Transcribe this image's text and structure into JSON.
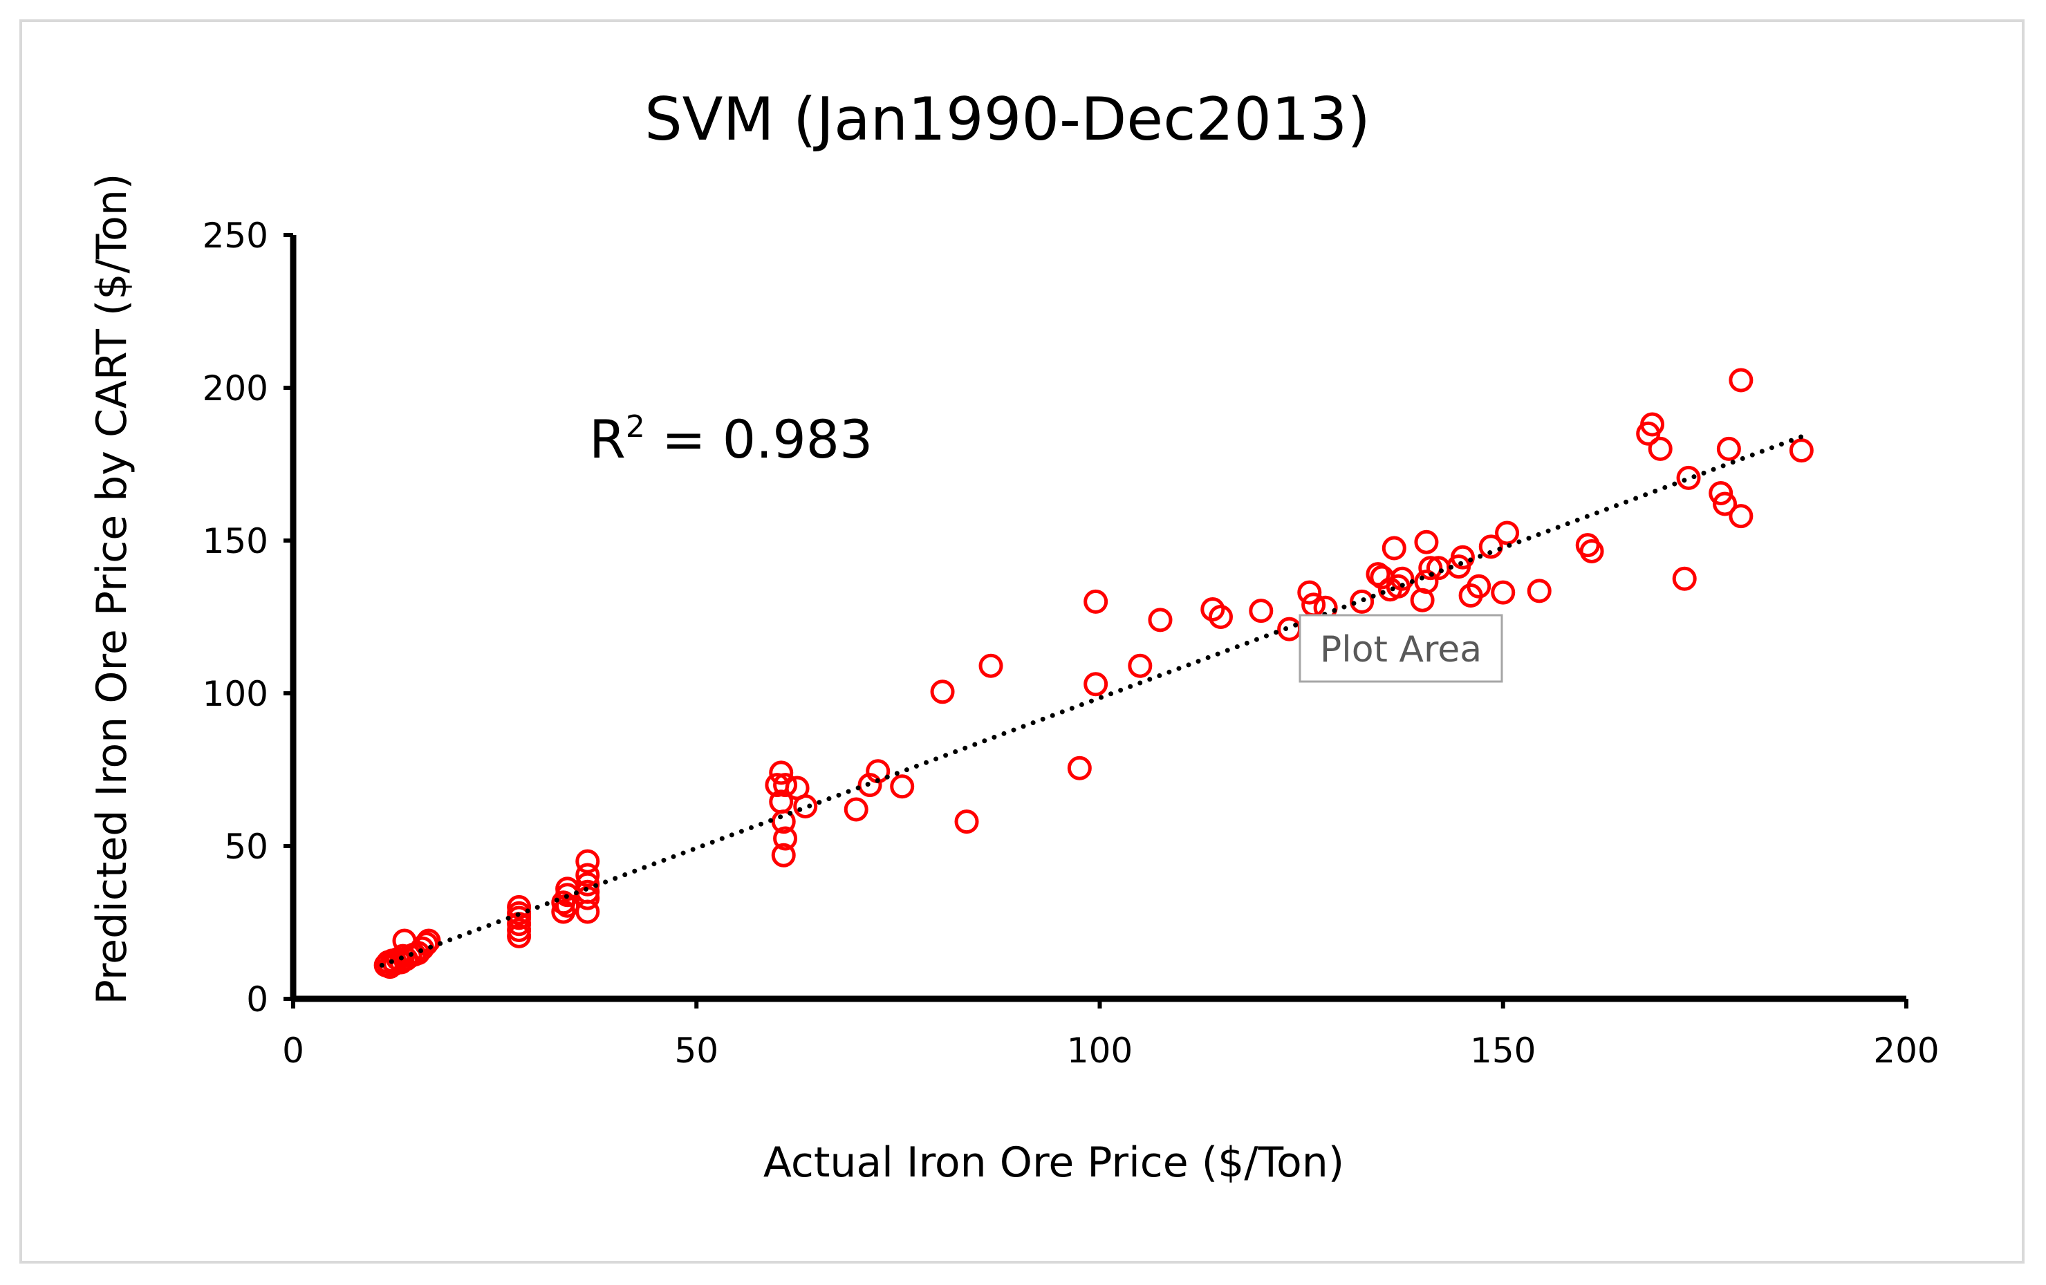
{
  "chart_data": {
    "type": "scatter",
    "title": "SVM (Jan1990-Dec2013)",
    "xlabel": "Actual Iron Ore Price ($/Ton)",
    "ylabel": "Predicted Iron Ore Price by CART ($/Ton)",
    "xlim": [
      0,
      200
    ],
    "ylim": [
      0,
      250
    ],
    "xticks": [
      "0",
      "50",
      "100",
      "150",
      "200"
    ],
    "yticks": [
      "0",
      "50",
      "100",
      "150",
      "200",
      "250"
    ],
    "grid": false,
    "marker_color": "#ff0000",
    "trendline": {
      "style": "dotted",
      "color": "#000000",
      "x_start": 11,
      "y_start": 11,
      "x_end": 187,
      "y_end": 184
    },
    "annotation": {
      "base": "R",
      "sup": "2",
      "rest": " = 0.983"
    },
    "tooltip": "Plot Area",
    "series": [
      {
        "name": "Predicted vs Actual",
        "x": [
          11.5,
          11.8,
          12.0,
          12.3,
          12.6,
          13.0,
          13.4,
          13.6,
          14.0,
          14.5,
          15.0,
          15.5,
          16.0,
          16.5,
          13.8,
          16.8,
          28,
          28,
          28,
          28,
          28,
          28,
          33.5,
          33.5,
          34,
          34,
          34,
          36.5,
          36.5,
          36.5,
          36.5,
          36.5,
          36.5,
          60,
          60.5,
          60.5,
          60.8,
          60.8,
          61,
          61,
          62.5,
          63.5,
          69.8,
          71.5,
          72.5,
          75.5,
          80.5,
          83.5,
          86.5,
          97.5,
          99.5,
          99.5,
          105,
          107.5,
          114,
          115,
          120,
          123.5,
          126,
          126.5,
          128,
          132.5,
          134.5,
          135,
          136,
          136.5,
          137,
          137.5,
          140,
          140.5,
          140.5,
          141,
          142,
          144.5,
          145,
          146,
          147,
          148.5,
          150,
          150.5,
          154.5,
          160.5,
          161,
          168,
          168.5,
          169.5,
          173,
          172.5,
          177,
          177.5,
          178,
          179.5,
          179.5,
          187
        ]
      },
      {
        "name": "Predicted",
        "y": [
          11,
          12,
          10.5,
          12.5,
          11.5,
          13,
          12,
          14,
          13,
          14,
          14.5,
          15,
          16.5,
          18,
          19,
          19,
          20.5,
          22.5,
          24.5,
          26.5,
          28,
          30,
          28.5,
          31.5,
          34,
          36,
          30.5,
          28.5,
          35,
          37.5,
          40.5,
          45,
          33,
          70,
          74,
          64.5,
          58,
          47,
          52.5,
          70,
          69,
          63,
          62,
          70,
          74.5,
          69.5,
          100.5,
          58,
          109,
          75.5,
          103,
          130,
          109,
          124,
          127.5,
          125,
          127,
          121,
          133,
          129,
          128,
          130,
          139,
          138,
          134,
          147.5,
          135,
          137.5,
          130.5,
          149.5,
          136.5,
          141,
          141,
          141.5,
          144.5,
          132,
          135,
          148,
          133,
          152.5,
          133.5,
          148.5,
          146.5,
          185,
          188,
          180,
          170.5,
          137.5,
          165.5,
          162,
          180,
          158,
          202.5,
          179.5
        ]
      }
    ]
  }
}
